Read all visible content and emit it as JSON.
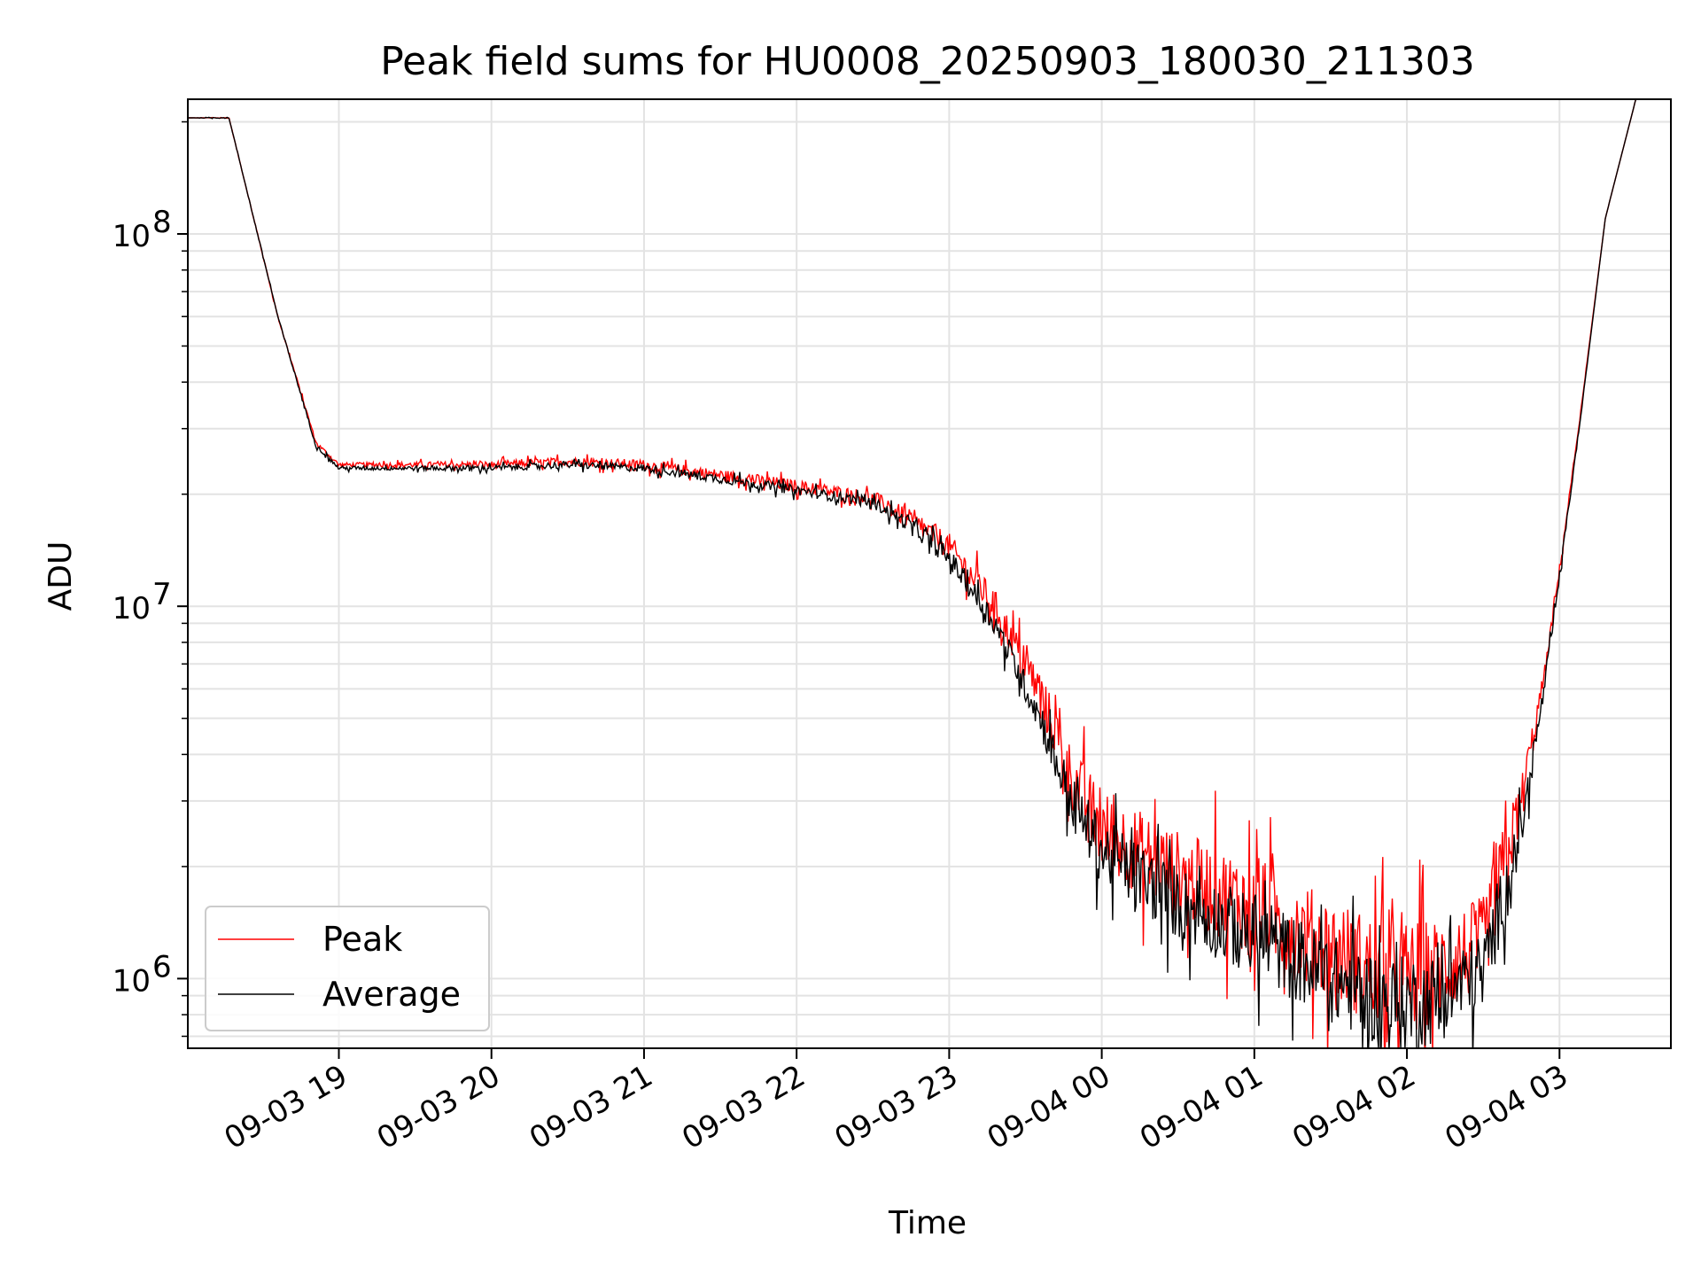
{
  "chart_data": {
    "type": "line",
    "title": "Peak field sums for HU0008_20250903_180030_211303",
    "xlabel": "Time",
    "ylabel": "ADU",
    "yscale": "log",
    "ylim": [
      650000,
      230000000
    ],
    "xlim_hours": [
      18.01,
      27.73
    ],
    "grid": true,
    "legend_position": "lower-left",
    "x_ticks": [
      {
        "hour": 19,
        "label": "09-03 19"
      },
      {
        "hour": 20,
        "label": "09-03 20"
      },
      {
        "hour": 21,
        "label": "09-03 21"
      },
      {
        "hour": 22,
        "label": "09-03 22"
      },
      {
        "hour": 23,
        "label": "09-03 23"
      },
      {
        "hour": 24,
        "label": "09-04 00"
      },
      {
        "hour": 25,
        "label": "09-04 01"
      },
      {
        "hour": 26,
        "label": "09-04 02"
      },
      {
        "hour": 27,
        "label": "09-04 03"
      }
    ],
    "y_ticks": [
      {
        "value": 1000000,
        "base": "10",
        "exp": "6"
      },
      {
        "value": 10000000,
        "base": "10",
        "exp": "7"
      },
      {
        "value": 100000000,
        "base": "10",
        "exp": "8"
      }
    ],
    "series": [
      {
        "name": "Average",
        "color": "#000000",
        "points": [
          [
            18.01,
            205000000
          ],
          [
            18.28,
            205000000
          ],
          [
            18.6,
            60000000
          ],
          [
            18.85,
            27000000
          ],
          [
            19.0,
            23500000
          ],
          [
            19.5,
            23500000
          ],
          [
            20.0,
            23500000
          ],
          [
            20.5,
            24000000
          ],
          [
            21.0,
            23500000
          ],
          [
            21.5,
            22000000
          ],
          [
            22.0,
            20500000
          ],
          [
            22.5,
            19000000
          ],
          [
            22.75,
            16500000
          ],
          [
            23.0,
            13500000
          ],
          [
            23.3,
            9000000
          ],
          [
            23.6,
            5000000
          ],
          [
            23.8,
            3000000
          ],
          [
            24.0,
            2200000
          ],
          [
            24.5,
            1600000
          ],
          [
            25.0,
            1300000
          ],
          [
            25.5,
            1000000
          ],
          [
            25.9,
            850000
          ],
          [
            26.2,
            880000
          ],
          [
            26.5,
            1050000
          ],
          [
            26.75,
            2500000
          ],
          [
            26.9,
            6000000
          ],
          [
            27.0,
            12000000
          ],
          [
            27.15,
            35000000
          ],
          [
            27.3,
            110000000
          ],
          [
            27.5,
            230000000
          ],
          [
            27.73,
            230000000
          ]
        ],
        "noise": [
          [
            18.0,
            0.0
          ],
          [
            18.9,
            0.005
          ],
          [
            22.5,
            0.015
          ],
          [
            23.5,
            0.04
          ],
          [
            24.0,
            0.09
          ],
          [
            25.0,
            0.11
          ],
          [
            26.0,
            0.13
          ],
          [
            26.6,
            0.1
          ],
          [
            26.9,
            0.02
          ],
          [
            27.2,
            0.0
          ],
          [
            27.8,
            0.0
          ]
        ]
      },
      {
        "name": "Peak",
        "color": "#ff0000",
        "points": [
          [
            18.01,
            205000000
          ],
          [
            18.28,
            205000000
          ],
          [
            18.6,
            60000000
          ],
          [
            18.85,
            27500000
          ],
          [
            19.0,
            24000000
          ],
          [
            19.5,
            24000000
          ],
          [
            20.0,
            24000000
          ],
          [
            20.5,
            24500000
          ],
          [
            21.0,
            24000000
          ],
          [
            21.5,
            22500000
          ],
          [
            22.0,
            21000000
          ],
          [
            22.5,
            19500000
          ],
          [
            22.75,
            17000000
          ],
          [
            23.0,
            14500000
          ],
          [
            23.3,
            10000000
          ],
          [
            23.6,
            5800000
          ],
          [
            23.8,
            3500000
          ],
          [
            24.0,
            2500000
          ],
          [
            24.5,
            1900000
          ],
          [
            25.0,
            1550000
          ],
          [
            25.5,
            1200000
          ],
          [
            25.9,
            1000000
          ],
          [
            26.2,
            1050000
          ],
          [
            26.5,
            1250000
          ],
          [
            26.75,
            3000000
          ],
          [
            26.9,
            6500000
          ],
          [
            27.0,
            12500000
          ],
          [
            27.15,
            36000000
          ],
          [
            27.3,
            110000000
          ],
          [
            27.5,
            230000000
          ],
          [
            27.73,
            230000000
          ]
        ],
        "noise": [
          [
            18.0,
            0.0
          ],
          [
            18.9,
            0.005
          ],
          [
            22.5,
            0.02
          ],
          [
            23.5,
            0.05
          ],
          [
            24.0,
            0.11
          ],
          [
            25.0,
            0.13
          ],
          [
            26.0,
            0.15
          ],
          [
            26.6,
            0.12
          ],
          [
            26.9,
            0.02
          ],
          [
            27.2,
            0.0
          ],
          [
            27.8,
            0.0
          ]
        ]
      }
    ]
  }
}
